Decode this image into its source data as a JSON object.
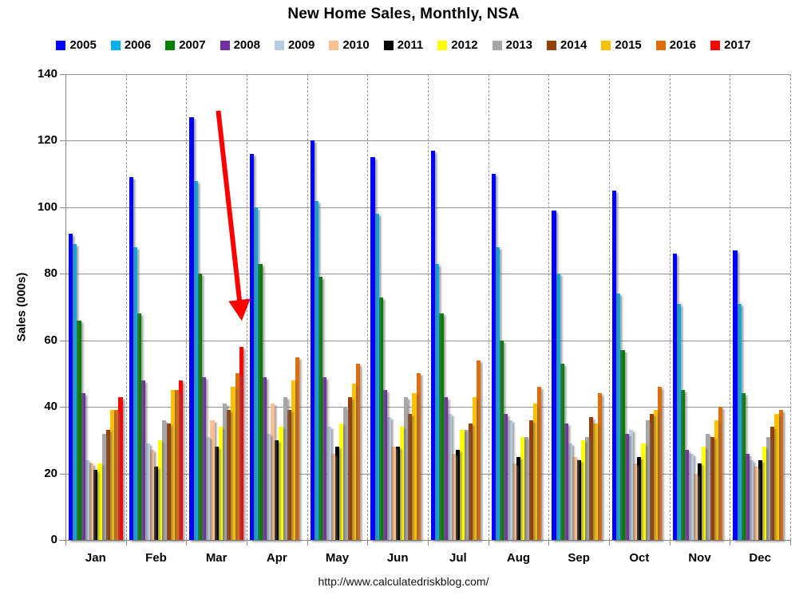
{
  "footer": "http://www.calculatedriskblog.com/",
  "chart_data": {
    "type": "bar",
    "title": "New Home Sales, Monthly, NSA",
    "xlabel": "",
    "ylabel": "Sales (000s)",
    "ylim": [
      0,
      140
    ],
    "y_ticks": [
      0,
      20,
      40,
      60,
      80,
      100,
      120,
      140
    ],
    "grid": "horizontal solid lines every 20; dashed vertical separators between months",
    "legend_position": "top",
    "categories": [
      "Jan",
      "Feb",
      "Mar",
      "Apr",
      "May",
      "Jun",
      "Jul",
      "Aug",
      "Sep",
      "Oct",
      "Nov",
      "Dec"
    ],
    "series": [
      {
        "name": "2005",
        "color": "#0000FE",
        "values": [
          92,
          109,
          127,
          116,
          120,
          115,
          117,
          110,
          99,
          105,
          86,
          87
        ]
      },
      {
        "name": "2006",
        "color": "#00B0F0",
        "values": [
          89,
          88,
          108,
          100,
          102,
          98,
          83,
          88,
          80,
          74,
          71,
          71
        ]
      },
      {
        "name": "2007",
        "color": "#008000",
        "values": [
          66,
          68,
          80,
          83,
          79,
          73,
          68,
          60,
          53,
          57,
          45,
          44
        ]
      },
      {
        "name": "2008",
        "color": "#7030A0",
        "values": [
          44,
          48,
          49,
          49,
          49,
          45,
          43,
          38,
          35,
          32,
          27,
          26
        ]
      },
      {
        "name": "2009",
        "color": "#B8CCE4",
        "values": [
          24,
          29,
          31,
          32,
          34,
          37,
          38,
          36,
          29,
          33,
          26,
          24
        ]
      },
      {
        "name": "2010",
        "color": "#FAC090",
        "values": [
          23,
          27,
          36,
          41,
          26,
          28,
          26,
          23,
          25,
          23,
          20,
          22
        ]
      },
      {
        "name": "2011",
        "color": "#000000",
        "values": [
          21,
          22,
          28,
          30,
          28,
          28,
          27,
          25,
          24,
          25,
          23,
          24
        ]
      },
      {
        "name": "2012",
        "color": "#FFFF00",
        "values": [
          23,
          30,
          34,
          34,
          35,
          34,
          33,
          31,
          30,
          29,
          28,
          28
        ]
      },
      {
        "name": "2013",
        "color": "#A6A6A6",
        "values": [
          32,
          36,
          41,
          43,
          40,
          43,
          33,
          31,
          31,
          36,
          32,
          31
        ]
      },
      {
        "name": "2014",
        "color": "#963F06",
        "values": [
          33,
          35,
          39,
          39,
          43,
          38,
          35,
          36,
          37,
          38,
          31,
          34
        ]
      },
      {
        "name": "2015",
        "color": "#FFC000",
        "values": [
          39,
          45,
          46,
          48,
          47,
          44,
          43,
          41,
          35,
          39,
          36,
          38
        ]
      },
      {
        "name": "2016",
        "color": "#E36C0A",
        "values": [
          39,
          45,
          50,
          55,
          53,
          50,
          54,
          46,
          44,
          46,
          40,
          39
        ]
      },
      {
        "name": "2017",
        "color": "#FF0000",
        "values": [
          43,
          48,
          58,
          null,
          null,
          null,
          null,
          null,
          null,
          null,
          null,
          null
        ]
      }
    ],
    "annotation": {
      "type": "arrow",
      "color": "#FF0000",
      "points_to": "Mar 2017 bar",
      "from": {
        "month_frac": 2.53,
        "value": 129
      },
      "to": {
        "month_frac": 2.9,
        "value": 69
      }
    }
  }
}
